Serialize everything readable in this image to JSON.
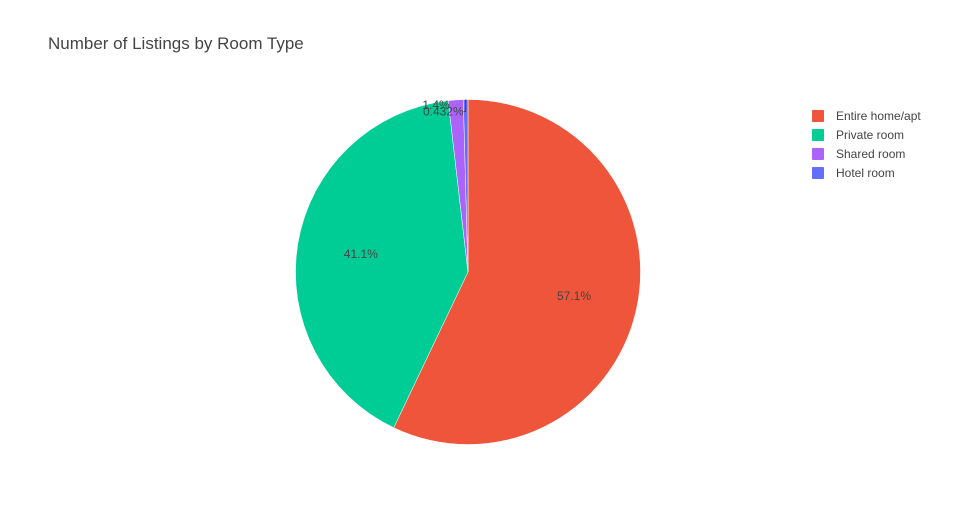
{
  "chart_data": {
    "type": "pie",
    "title": "Number of Listings by Room Type",
    "categories": [
      "Entire home/apt",
      "Private room",
      "Shared room",
      "Hotel room"
    ],
    "values": [
      57.1,
      41.1,
      1.4,
      0.432
    ],
    "labels": [
      "57.1%",
      "41.1%",
      "1.4%",
      "0.432%"
    ],
    "colors": [
      "#EF553B",
      "#00CC96",
      "#AB63FA",
      "#636EFA"
    ],
    "legend_position": "top-right",
    "sort": "descending",
    "direction": "clockwise",
    "start": "top"
  }
}
